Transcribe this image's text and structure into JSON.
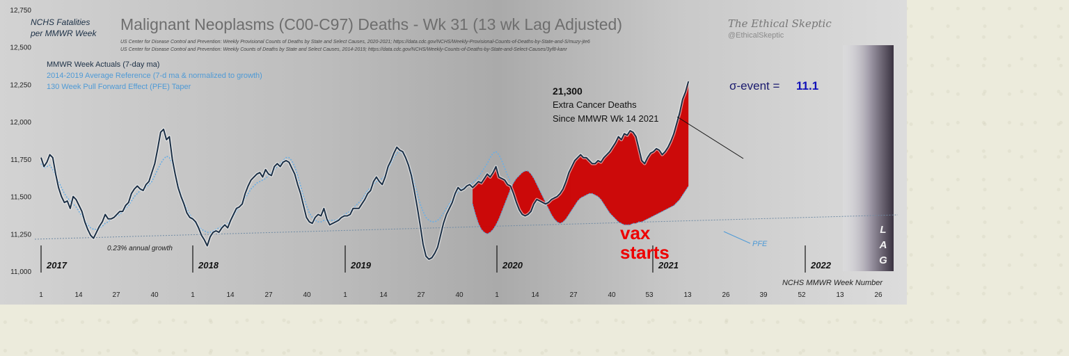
{
  "chart_data": {
    "type": "line",
    "title": "Malignant Neoplasms (C00-C97) Deaths - Wk 31 (13 wk Lag Adjusted)",
    "sources": [
      "US Center for Disease Control and Prevention: Weekly  Provisional Counts of Deaths by State and Select Causes, 2020-2021; https://data.cdc.gov/NCHS/Weekly-Provisional-Counts-of-Deaths-by-State-and-S/muzy-jte6",
      "US Center for Disease Control and Prevention: Weekly  Counts of Deaths by State and Select Causes, 2014-2019; https://data.cdc.gov/NCHS/Weekly-Counts-of-Deaths-by-State-and-Select-Causes/3yf8-kanr"
    ],
    "ylabel_line1": "NCHS Fatalities",
    "ylabel_line2": "per MMWR Week",
    "xlabel": "NCHS MMWR Week Number",
    "ylim": [
      11000,
      12750
    ],
    "yticks": [
      "12,750",
      "12,500",
      "12,250",
      "12,000",
      "11,750",
      "11,500",
      "11,250",
      "11,000"
    ],
    "xtick_labels": [
      "1",
      "14",
      "27",
      "40",
      "1",
      "14",
      "27",
      "40",
      "1",
      "14",
      "27",
      "40",
      "1",
      "14",
      "27",
      "40",
      "53",
      "13",
      "26",
      "39",
      "52",
      "13",
      "26"
    ],
    "year_labels": [
      "2017",
      "2018",
      "2019",
      "2020",
      "2021",
      "2022"
    ],
    "legend": [
      {
        "name": "MMWR Week Actuals (7-day ma)",
        "color": "#1b2f45"
      },
      {
        "name": "2014-2019 Average Reference  (7-d ma & normalized to growth)",
        "color": "#4e9ad6"
      },
      {
        "name": "130 Week Pull Forward Effect (PFE) Taper",
        "color": "#4e9ad6"
      }
    ],
    "series": [
      {
        "name": "MMWR Week Actuals (7-day ma)",
        "color": "#1b2f45",
        "values": [
          11760,
          11700,
          11730,
          11780,
          11760,
          11650,
          11560,
          11500,
          11460,
          11470,
          11420,
          11500,
          11480,
          11440,
          11400,
          11330,
          11280,
          11240,
          11220,
          11260,
          11300,
          11330,
          11380,
          11350,
          11350,
          11360,
          11380,
          11400,
          11400,
          11440,
          11460,
          11520,
          11550,
          11570,
          11550,
          11540,
          11580,
          11600,
          11660,
          11720,
          11820,
          11930,
          11950,
          11880,
          11900,
          11750,
          11650,
          11560,
          11500,
          11450,
          11390,
          11360,
          11350,
          11330,
          11290,
          11240,
          11210,
          11170,
          11230,
          11260,
          11270,
          11260,
          11290,
          11310,
          11290,
          11340,
          11380,
          11420,
          11430,
          11450,
          11520,
          11570,
          11610,
          11630,
          11650,
          11660,
          11630,
          11680,
          11650,
          11640,
          11700,
          11720,
          11700,
          11730,
          11740,
          11730,
          11690,
          11650,
          11580,
          11520,
          11440,
          11360,
          11330,
          11320,
          11360,
          11380,
          11370,
          11420,
          11350,
          11310,
          11320,
          11330,
          11340,
          11360,
          11370,
          11370,
          11380,
          11420,
          11420,
          11420,
          11450,
          11480,
          11520,
          11540,
          11600,
          11630,
          11600,
          11580,
          11630,
          11700,
          11740,
          11790,
          11830,
          11810,
          11800,
          11760,
          11710,
          11640,
          11540,
          11430,
          11310,
          11180,
          11100,
          11080,
          11090,
          11120,
          11160,
          11240,
          11320,
          11380,
          11420,
          11460,
          11520,
          11560,
          11540,
          11550,
          11570,
          11580,
          11560,
          11580,
          11600,
          11590,
          11620,
          11650,
          11630,
          11660,
          11700,
          11630,
          11620,
          11610,
          11580,
          11570,
          11520,
          11460,
          11410,
          11380,
          11370,
          11380,
          11400,
          11450,
          11480,
          11470,
          11460,
          11450,
          11460,
          11480,
          11490,
          11500,
          11520,
          11550,
          11600,
          11660,
          11700,
          11740,
          11760,
          11780,
          11760,
          11760,
          11740,
          11720,
          11720,
          11740,
          11730,
          11760,
          11780,
          11800,
          11830,
          11860,
          11900,
          11880,
          11920,
          11910,
          11940,
          11930,
          11900,
          11820,
          11740,
          11720,
          11760,
          11790,
          11800,
          11820,
          11810,
          11780,
          11800,
          11830,
          11870,
          11920,
          11990,
          12060,
          12150,
          12200,
          12270
        ]
      },
      {
        "name": "2014-2019 Average Reference  (7-d ma & normalized to growth)",
        "color": "#6aaee4",
        "values": [
          11720,
          11690,
          11700,
          11710,
          11680,
          11640,
          11600,
          11560,
          11520,
          11490,
          11470,
          11450,
          11430,
          11400,
          11370,
          11340,
          11310,
          11290,
          11280,
          11280,
          11290,
          11300,
          11320,
          11330,
          11350,
          11360,
          11370,
          11380,
          11400,
          11420,
          11440,
          11470,
          11500,
          11520,
          11540,
          11550,
          11560,
          11580,
          11600,
          11640,
          11680,
          11720,
          11750,
          11770,
          11760,
          11720,
          11650,
          11580,
          11510,
          11460,
          11420,
          11380,
          11350,
          11320,
          11300,
          11280,
          11270,
          11260,
          11260,
          11270,
          11280,
          11290,
          11300,
          11310,
          11320,
          11340,
          11370,
          11400,
          11430,
          11460,
          11490,
          11520,
          11550,
          11570,
          11590,
          11600,
          11610,
          11620,
          11640,
          11660,
          11680,
          11700,
          11720,
          11740,
          11760,
          11760,
          11740,
          11700,
          11640,
          11570,
          11500,
          11440,
          11390,
          11360,
          11340,
          11330,
          11330,
          11340,
          11340,
          11340,
          11340,
          11340,
          11350,
          11360,
          11380,
          11390,
          11400,
          11420,
          11440,
          11460,
          11480,
          11510,
          11540,
          11560,
          11580,
          11600,
          11610,
          11620,
          11640,
          11680,
          11720,
          11760,
          11790,
          11800,
          11790,
          11760,
          11720,
          11660,
          11590,
          11520,
          11450,
          11400,
          11360,
          11340,
          11330,
          11330,
          11340,
          11360,
          11390,
          11420,
          11450,
          11480,
          11510,
          11530,
          11550,
          11560,
          11570,
          11580,
          11590,
          11610,
          11630,
          11660,
          11690,
          11720,
          11760,
          11790,
          11800,
          11780,
          11740,
          11690,
          11640,
          11600
        ]
      },
      {
        "name": "130 Week Pull Forward Effect (PFE) Taper",
        "color": "#4e9ad6",
        "values": [
          11450,
          11380,
          11320,
          11280,
          11260,
          11250,
          11260,
          11280,
          11310,
          11350,
          11400,
          11450,
          11500,
          11550,
          11590,
          11620,
          11640,
          11660,
          11670,
          11670,
          11650,
          11620,
          11580,
          11540,
          11500,
          11460,
          11420,
          11380,
          11350,
          11330,
          11320,
          11330,
          11350,
          11380,
          11410,
          11440,
          11470,
          11490,
          11500,
          11510,
          11520,
          11520,
          11510,
          11500,
          11480,
          11450,
          11420,
          11390,
          11370,
          11350,
          11330,
          11320,
          11310,
          11310,
          11310,
          11320,
          11320,
          11330,
          11330,
          11340,
          11350,
          11360,
          11370,
          11380,
          11390,
          11400,
          11410,
          11420,
          11430,
          11440,
          11460,
          11480,
          11510,
          11540,
          11570
        ]
      }
    ],
    "trend_label": "0.23% annual growth",
    "annotation_count": "21,300",
    "annotation_line1": "Extra Cancer Deaths",
    "annotation_line2": "Since MMWR  Wk 14 2021",
    "sigma_label": "σ-event  =",
    "sigma_value": "11.1",
    "pfe_label": "PFE",
    "vax_line1": "vax",
    "vax_line2": "starts",
    "lag_letters": [
      "L",
      "A",
      "G"
    ],
    "excess_fill_color": "#cc0000"
  },
  "brand": {
    "name": "The Ethical Skeptic",
    "handle": "@EthicalSkeptic"
  }
}
